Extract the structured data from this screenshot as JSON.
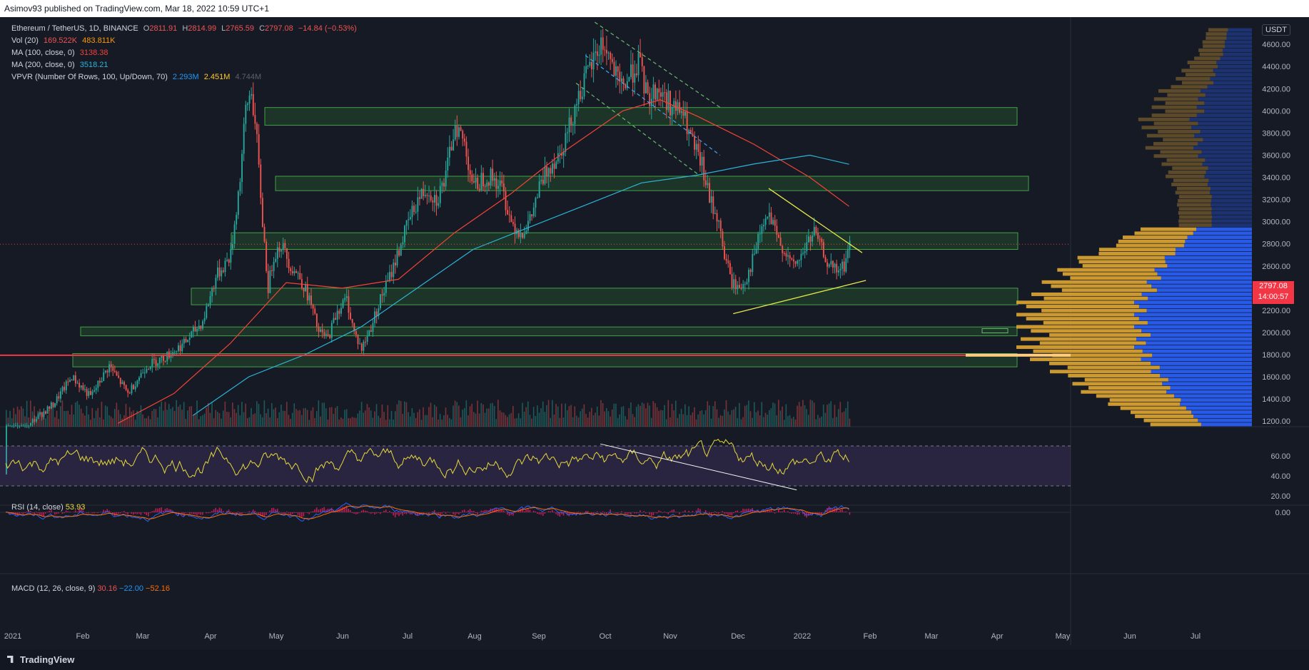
{
  "header": {
    "publisher": "Asimov93 published on TradingView.com, Mar 18, 2022 10:59 UTC+1"
  },
  "legend": {
    "symbol": "Ethereum / TetherUS, 1D, BINANCE",
    "ohlc": {
      "o_label": "O",
      "o": "2811.91",
      "h_label": "H",
      "h": "2814.99",
      "l_label": "L",
      "l": "2765.59",
      "c_label": "C",
      "c": "2797.08",
      "change": "−14.84 (−0.53%)"
    },
    "vol": {
      "label": "Vol (20)",
      "v1": "169.522K",
      "v2": "483.811K"
    },
    "ma100": {
      "label": "MA (100, close, 0)",
      "value": "3138.38"
    },
    "ma200": {
      "label": "MA (200, close, 0)",
      "value": "3518.21"
    },
    "vpvr": {
      "label": "VPVR (Number Of Rows, 100, Up/Down, 70)",
      "up": "2.293M",
      "down": "2.451M",
      "total": "4.744M"
    }
  },
  "rsi": {
    "label": "RSI (14, close)",
    "value": "53.93"
  },
  "macd": {
    "label": "MACD (12, 26, close, 9)",
    "hist": "30.16",
    "macd": "−22.00",
    "signal": "−52.16"
  },
  "price_badge": {
    "price": "2797.08",
    "countdown": "14:00:57"
  },
  "currency_button": "USDT",
  "brand": "TradingView",
  "colors": {
    "bg": "#161a25",
    "up": "#26a69a",
    "down": "#ef5350",
    "ma100": "#f44336",
    "ma200": "#2bb5d8",
    "zone": "#2e7d32",
    "vp_up": "#2962ff",
    "vp_down": "#e0a733",
    "trend": "#e6e64c",
    "rsi": "#e6d93a",
    "macd": "#2962ff",
    "signal": "#ff6d00"
  },
  "chart_data": [
    {
      "type": "candlestick",
      "title": "Ethereum / TetherUS, 1D, BINANCE",
      "x_tick_labels": [
        "2021",
        "Feb",
        "Mar",
        "Apr",
        "May",
        "Jun",
        "Jul",
        "Aug",
        "Sep",
        "Oct",
        "Nov",
        "Dec",
        "2022",
        "Feb",
        "Mar",
        "Apr",
        "May",
        "Jun",
        "Jul"
      ],
      "y_tick_labels": [
        "1200.00",
        "1400.00",
        "1600.00",
        "1800.00",
        "2000.00",
        "2200.00",
        "2400.00",
        "2600.00",
        "2800.00",
        "3000.00",
        "3200.00",
        "3400.00",
        "3600.00",
        "3800.00",
        "4000.00",
        "4200.00",
        "4400.00",
        "4600.00"
      ],
      "ylim": [
        1150,
        4820
      ],
      "price_path": [
        [
          0,
          730
        ],
        [
          14,
          1200
        ],
        [
          25,
          1350
        ],
        [
          35,
          1600
        ],
        [
          45,
          1420
        ],
        [
          55,
          1700
        ],
        [
          65,
          1450
        ],
        [
          75,
          1700
        ],
        [
          85,
          1780
        ],
        [
          95,
          1900
        ],
        [
          105,
          2100
        ],
        [
          112,
          2500
        ],
        [
          120,
          2700
        ],
        [
          125,
          3400
        ],
        [
          128,
          4000
        ],
        [
          131,
          4200
        ],
        [
          134,
          3700
        ],
        [
          137,
          3000
        ],
        [
          140,
          2400
        ],
        [
          143,
          2700
        ],
        [
          147,
          2800
        ],
        [
          152,
          2600
        ],
        [
          157,
          2500
        ],
        [
          162,
          2300
        ],
        [
          167,
          2000
        ],
        [
          172,
          1950
        ],
        [
          177,
          2200
        ],
        [
          182,
          2300
        ],
        [
          186,
          2000
        ],
        [
          190,
          1850
        ],
        [
          195,
          2050
        ],
        [
          200,
          2300
        ],
        [
          205,
          2500
        ],
        [
          210,
          2750
        ],
        [
          215,
          3000
        ],
        [
          220,
          3200
        ],
        [
          225,
          3300
        ],
        [
          230,
          3200
        ],
        [
          235,
          3400
        ],
        [
          240,
          3900
        ],
        [
          245,
          3700
        ],
        [
          250,
          3300
        ],
        [
          255,
          3400
        ],
        [
          260,
          3400
        ],
        [
          265,
          3300
        ],
        [
          270,
          3000
        ],
        [
          275,
          2900
        ],
        [
          280,
          3000
        ],
        [
          285,
          3300
        ],
        [
          290,
          3500
        ],
        [
          295,
          3600
        ],
        [
          300,
          3800
        ],
        [
          305,
          4100
        ],
        [
          310,
          4300
        ],
        [
          315,
          4500
        ],
        [
          318,
          4600
        ],
        [
          321,
          4550
        ],
        [
          324,
          4400
        ],
        [
          328,
          4200
        ],
        [
          333,
          4300
        ],
        [
          338,
          4450
        ],
        [
          343,
          4100
        ],
        [
          348,
          4200
        ],
        [
          353,
          4100
        ],
        [
          358,
          4000
        ],
        [
          361,
          4000
        ],
        [
          365,
          3800
        ],
        [
          368,
          3650
        ],
        [
          372,
          3500
        ],
        [
          376,
          3200
        ],
        [
          380,
          3050
        ],
        [
          384,
          2700
        ],
        [
          388,
          2450
        ],
        [
          392,
          2400
        ],
        [
          396,
          2500
        ],
        [
          400,
          2700
        ],
        [
          404,
          2950
        ],
        [
          408,
          3050
        ],
        [
          412,
          2850
        ],
        [
          416,
          2750
        ],
        [
          420,
          2600
        ],
        [
          424,
          2650
        ],
        [
          428,
          2800
        ],
        [
          432,
          2900
        ],
        [
          436,
          2750
        ],
        [
          440,
          2600
        ],
        [
          444,
          2550
        ],
        [
          448,
          2600
        ],
        [
          451,
          2797
        ]
      ],
      "ma100": [
        [
          0,
          null
        ],
        [
          60,
          1180
        ],
        [
          90,
          1450
        ],
        [
          120,
          1900
        ],
        [
          150,
          2450
        ],
        [
          180,
          2400
        ],
        [
          210,
          2480
        ],
        [
          240,
          2900
        ],
        [
          270,
          3250
        ],
        [
          300,
          3650
        ],
        [
          330,
          4000
        ],
        [
          350,
          4100
        ],
        [
          370,
          3950
        ],
        [
          400,
          3700
        ],
        [
          430,
          3400
        ],
        [
          451,
          3138
        ]
      ],
      "ma200": [
        [
          0,
          null
        ],
        [
          100,
          1250
        ],
        [
          130,
          1600
        ],
        [
          160,
          1800
        ],
        [
          190,
          2050
        ],
        [
          220,
          2400
        ],
        [
          250,
          2750
        ],
        [
          280,
          2950
        ],
        [
          310,
          3150
        ],
        [
          340,
          3350
        ],
        [
          370,
          3420
        ],
        [
          400,
          3520
        ],
        [
          430,
          3600
        ],
        [
          451,
          3518
        ]
      ],
      "support_resistance_zones": [
        [
          3870,
          4030
        ],
        [
          3280,
          3410
        ],
        [
          2750,
          2900
        ],
        [
          2250,
          2400
        ],
        [
          1970,
          2050
        ],
        [
          1690,
          1810
        ]
      ],
      "horizontal_line": 1795,
      "trendlines": {
        "triangle_upper": [
          [
            408,
            3300
          ],
          [
            458,
            2720
          ]
        ],
        "triangle_lower": [
          [
            389,
            2170
          ],
          [
            460,
            2470
          ]
        ]
      }
    },
    {
      "type": "line",
      "title": "RSI (14, close)",
      "series": [
        {
          "name": "RSI",
          "values_summary": "oscillates 20–85",
          "last": 53.93
        }
      ],
      "y_tick_labels": [
        "20.00",
        "40.00",
        "60.00"
      ],
      "ylim": [
        15,
        85
      ],
      "bands": [
        30,
        70
      ]
    },
    {
      "type": "line",
      "title": "MACD (12, 26, close, 9)",
      "series": [
        {
          "name": "MACD",
          "last": -22.0
        },
        {
          "name": "Signal",
          "last": -52.16
        }
      ],
      "y_tick_labels": [
        "0.00"
      ]
    }
  ]
}
